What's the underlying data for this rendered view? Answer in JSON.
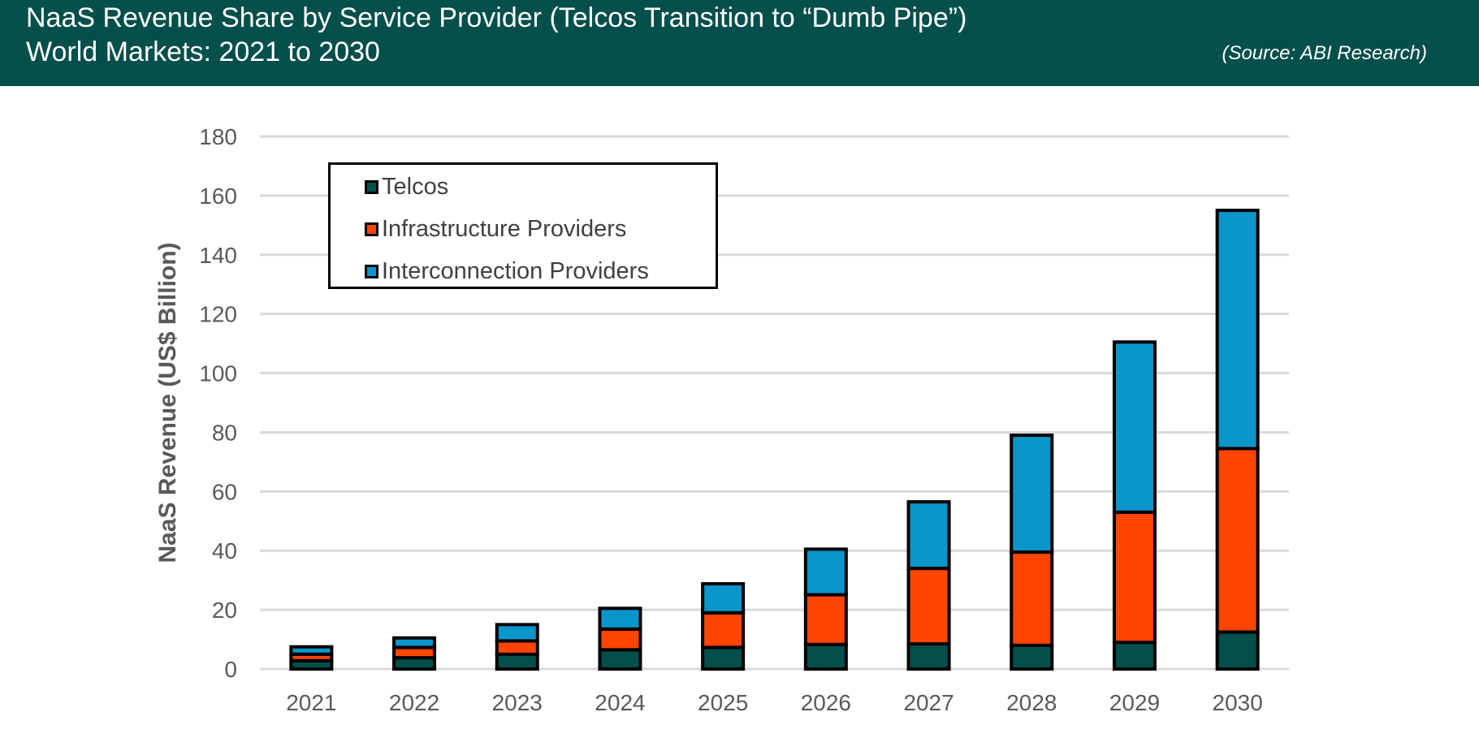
{
  "header": {
    "title_line1": "NaaS Revenue Share by Service Provider (Telcos Transition to “Dumb Pipe”)",
    "title_line2": "World Markets: 2021 to 2030",
    "source": "(Source: ABI Research)",
    "background_color": "#024f4b"
  },
  "chart_data": {
    "type": "bar",
    "stacked": true,
    "title": "NaaS Revenue Share by Service Provider (Telcos Transition to “Dumb Pipe”)",
    "subtitle": "World Markets: 2021 to 2030",
    "xlabel": "",
    "ylabel": "NaaS Revenue (US$ Billion)",
    "ylim": [
      0,
      180
    ],
    "yticks": [
      0,
      20,
      40,
      60,
      80,
      100,
      120,
      140,
      160,
      180
    ],
    "grid": true,
    "legend_position": "top-left",
    "categories": [
      "2021",
      "2022",
      "2023",
      "2024",
      "2025",
      "2026",
      "2027",
      "2028",
      "2029",
      "2030"
    ],
    "series": [
      {
        "name": "Telcos",
        "color": "#024f4b",
        "values": [
          2.8,
          3.8,
          5.0,
          6.5,
          7.3,
          8.3,
          8.5,
          8.0,
          9.0,
          12.5
        ]
      },
      {
        "name": "Infrastructure Providers",
        "color": "#ff4500",
        "values": [
          2.2,
          3.5,
          4.5,
          7.0,
          11.7,
          16.8,
          25.5,
          31.5,
          44.0,
          62.0
        ]
      },
      {
        "name": "Interconnection Providers",
        "color": "#0a96cb",
        "values": [
          2.5,
          3.2,
          5.5,
          7.0,
          9.8,
          15.4,
          22.5,
          39.5,
          57.5,
          80.5
        ]
      }
    ]
  }
}
